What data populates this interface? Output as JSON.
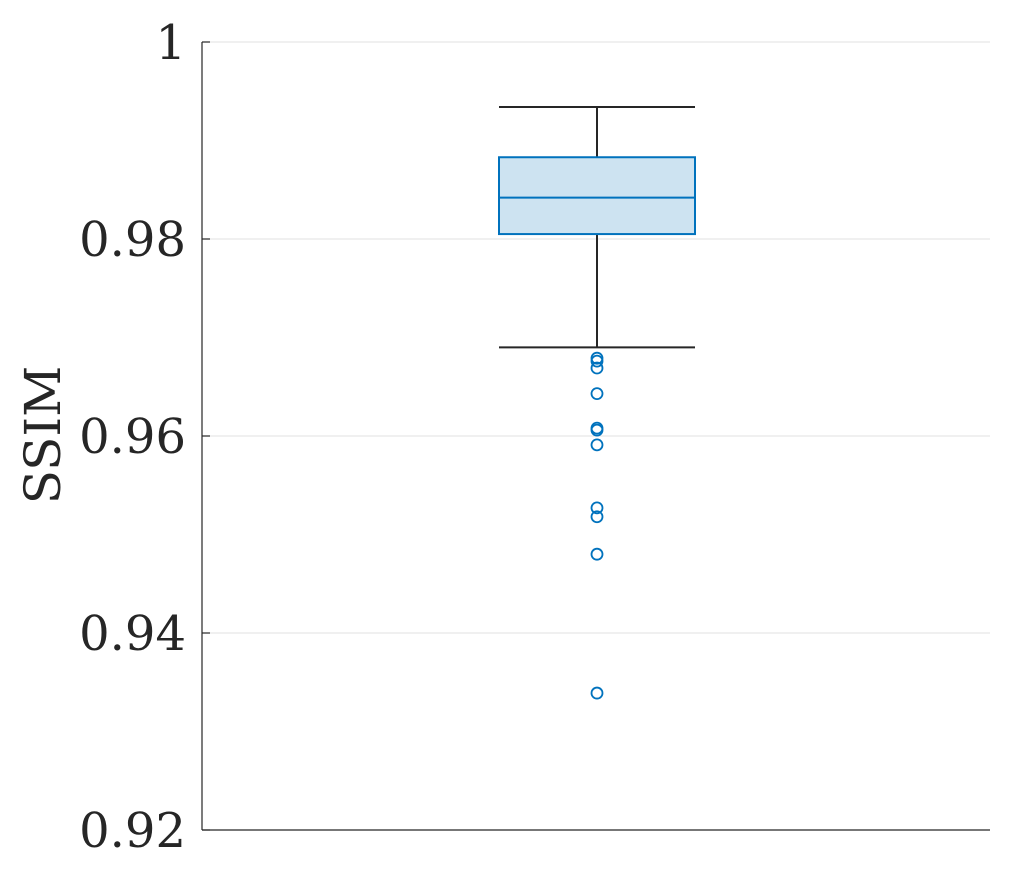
{
  "chart_data": {
    "type": "box",
    "ylabel": "SSIM",
    "ylim": [
      0.92,
      1.0
    ],
    "yticks": [
      0.92,
      0.94,
      0.96,
      0.98,
      1.0
    ],
    "ytick_labels": [
      "0.92",
      "0.94",
      "0.96",
      "0.98",
      "1"
    ],
    "grid": true,
    "box": {
      "whisker_low": 0.969,
      "q1": 0.9805,
      "median": 0.9842,
      "q3": 0.9883,
      "whisker_high": 0.9934,
      "outliers": [
        0.9679,
        0.9676,
        0.9669,
        0.9643,
        0.9608,
        0.9606,
        0.9591,
        0.9527,
        0.9518,
        0.948,
        0.9339
      ]
    },
    "colors": {
      "box_edge": "#0072bd",
      "box_fill": "#cde3f1",
      "whisker": "#262626",
      "outlier": "#0072bd",
      "grid": "#e2e2e2"
    }
  }
}
